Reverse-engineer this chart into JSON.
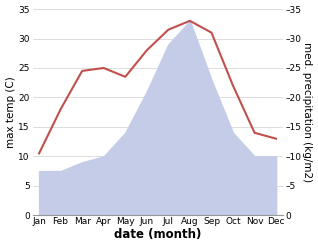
{
  "months": [
    "Jan",
    "Feb",
    "Mar",
    "Apr",
    "May",
    "Jun",
    "Jul",
    "Aug",
    "Sep",
    "Oct",
    "Nov",
    "Dec"
  ],
  "month_x": [
    1,
    2,
    3,
    4,
    5,
    6,
    7,
    8,
    9,
    10,
    11,
    12
  ],
  "temperature": [
    10.5,
    18,
    24.5,
    25,
    23.5,
    28,
    31.5,
    33,
    31,
    22,
    14,
    13
  ],
  "precipitation": [
    7.5,
    7.5,
    9,
    10,
    14,
    21,
    29,
    33,
    23,
    14,
    10,
    10
  ],
  "temp_color": "#c0504d",
  "precip_fill_color": "#c5cce8",
  "ylim": [
    0,
    35
  ],
  "yticks": [
    0,
    5,
    10,
    15,
    20,
    25,
    30,
    35
  ],
  "xlabel": "date (month)",
  "ylabel_left": "max temp (C)",
  "ylabel_right": "med. precipitation (kg/m2)",
  "bg_color": "#ffffff",
  "grid_color": "#d0d0d0",
  "tick_fontsize": 6.5,
  "label_fontsize": 7.5,
  "xlabel_fontsize": 8.5
}
